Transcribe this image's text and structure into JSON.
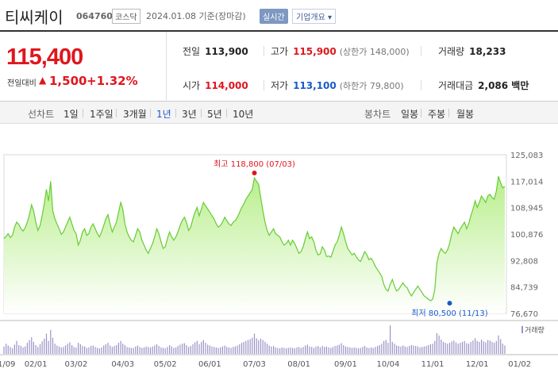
{
  "header": {
    "name": "티씨케이",
    "code": "064760",
    "market": "코스닥",
    "date": "2024.01.08",
    "basis": "기준(장마감)",
    "realtime_label": "실시간",
    "company_overview_label": "기업개요 ▾"
  },
  "quote": {
    "price": "115,400",
    "change_label": "전일대비",
    "change_arrow": "▲",
    "change_value": "1,500",
    "change_percent": "+1.32%",
    "prev_close_label": "전일",
    "prev_close": "113,900",
    "high_label": "고가",
    "high": "115,900",
    "upper_limit": "(상한가 148,000)",
    "volume_label": "거래량",
    "volume": "18,233",
    "open_label": "시가",
    "open": "114,000",
    "low_label": "저가",
    "low": "113,100",
    "lower_limit": "(하한가 79,800)",
    "value_label": "거래대금",
    "value": "2,086 백만"
  },
  "tabs": {
    "line_chart_label": "선차트",
    "periods": [
      "1일",
      "1주일",
      "3개월",
      "1년",
      "3년",
      "5년",
      "10년"
    ],
    "active_period": "1년",
    "candle_chart_label": "봉차트",
    "candle_periods": [
      "일봉",
      "주봉",
      "월봉"
    ]
  },
  "colors": {
    "up": "#e0161e",
    "down": "#1a5ac8",
    "line": "#66cc33",
    "fill_top": "#b9ee8c",
    "volume_bar": "#9b92c6"
  },
  "chart_data": {
    "type": "area",
    "y_ticks": [
      "125,083",
      "117,014",
      "108,945",
      "100,876",
      "92,808",
      "84,739",
      "76,670"
    ],
    "ylim": [
      76670,
      125083
    ],
    "x_ticks": [
      "01/09",
      "02/01",
      "03/02",
      "04/03",
      "05/02",
      "06/01",
      "07/03",
      "08/01",
      "09/01",
      "10/04",
      "11/01",
      "12/01",
      "01/02"
    ],
    "x_tick_index": [
      0,
      15,
      34,
      56,
      76,
      97,
      118,
      139,
      161,
      181,
      202,
      223,
      243
    ],
    "annotations": {
      "high": {
        "label": "최고",
        "value": "118,800",
        "date": "(07/03)",
        "index": 118,
        "price": 118800
      },
      "low": {
        "label": "최저",
        "value": "80,500",
        "date": "(11/13)",
        "index": 210,
        "price": 80500
      }
    },
    "volume_legend": "거래량",
    "series": [
      {
        "values": [
          99500,
          100200,
          101000,
          99800,
          100500,
          103000,
          104500,
          103800,
          102500,
          101800,
          102800,
          104500,
          106800,
          109800,
          108000,
          104500,
          102000,
          103500,
          106500,
          110200,
          114500,
          111000,
          117000,
          108000,
          105500,
          104000,
          102500,
          100800,
          101500,
          103000,
          104500,
          106000,
          104000,
          102000,
          101000,
          97500,
          99000,
          101500,
          102500,
          100500,
          101000,
          103000,
          104000,
          102500,
          101000,
          100000,
          101500,
          103500,
          105500,
          106800,
          104000,
          101500,
          103000,
          104500,
          107500,
          110500,
          108500,
          104000,
          101500,
          100000,
          99000,
          98500,
          100500,
          102500,
          101500,
          99000,
          97500,
          96000,
          95000,
          96500,
          98000,
          100000,
          102500,
          101000,
          98500,
          96500,
          97000,
          99500,
          101500,
          100000,
          99000,
          100000,
          101500,
          103500,
          105000,
          106000,
          104500,
          102000,
          103000,
          105500,
          107500,
          109000,
          106500,
          108500,
          110500,
          109500,
          108500,
          107500,
          106500,
          105500,
          104000,
          103000,
          103500,
          104500,
          106000,
          105000,
          104000,
          103500,
          104500,
          105000,
          106000,
          107500,
          109000,
          110000,
          111500,
          112500,
          113500,
          114500,
          118000,
          117000,
          116000,
          112000,
          108000,
          104500,
          102000,
          100500,
          101500,
          102500,
          101000,
          100500,
          100000,
          98500,
          97500,
          98000,
          99000,
          97500,
          99000,
          98000,
          96500,
          95000,
          95500,
          97000,
          99500,
          101500,
          99500,
          100000,
          98500,
          96000,
          94500,
          94800,
          97000,
          96000,
          94000,
          94200,
          93800,
          95500,
          97500,
          98500,
          100500,
          103000,
          101000,
          98500,
          96500,
          95500,
          94500,
          95000,
          94000,
          93000,
          92500,
          94000,
          95500,
          94500,
          93000,
          93500,
          92500,
          91000,
          90000,
          89000,
          88000,
          85500,
          84000,
          83500,
          85500,
          87000,
          85000,
          83500,
          84000,
          85000,
          86000,
          85000,
          84500,
          83000,
          82000,
          83000,
          84000,
          85000,
          84000,
          83000,
          82000,
          81500,
          81000,
          80500,
          81000,
          84000,
          92000,
          95000,
          96500,
          95500,
          95000,
          96000,
          98000,
          101000,
          103000,
          102000,
          101000,
          102500,
          103500,
          104500,
          102500,
          104000,
          106500,
          108500,
          111000,
          109000,
          110500,
          112500,
          111500,
          110500,
          112500,
          113000,
          112000,
          111500,
          114000,
          118500,
          116500,
          115000,
          115400
        ]
      },
      {
        "name": "거래량",
        "values": [
          16000,
          22000,
          18000,
          15000,
          12000,
          20000,
          28000,
          19000,
          17000,
          14000,
          16000,
          24000,
          30000,
          36000,
          26000,
          19000,
          15000,
          21000,
          27000,
          33000,
          44000,
          28000,
          52000,
          35000,
          22000,
          18000,
          16000,
          14000,
          15000,
          18000,
          22000,
          25000,
          19000,
          15000,
          14000,
          24000,
          21000,
          17000,
          16000,
          13000,
          14000,
          17000,
          18000,
          15000,
          13000,
          12000,
          14000,
          18000,
          21000,
          24000,
          18000,
          15000,
          17000,
          19000,
          24000,
          28000,
          22000,
          19000,
          15000,
          14000,
          13000,
          13000,
          16000,
          18000,
          15000,
          13000,
          14000,
          16000,
          15000,
          14000,
          16000,
          18000,
          21000,
          17000,
          14000,
          13000,
          12000,
          15000,
          19000,
          16000,
          13000,
          14000,
          17000,
          20000,
          22000,
          23000,
          19000,
          15000,
          17000,
          21000,
          25000,
          28000,
          21000,
          26000,
          30000,
          24000,
          20000,
          18000,
          16000,
          15000,
          14000,
          13000,
          14000,
          16000,
          18000,
          15000,
          14000,
          13000,
          15000,
          16000,
          18000,
          21000,
          24000,
          26000,
          28000,
          30000,
          32000,
          35000,
          44000,
          34000,
          30000,
          33000,
          30000,
          26000,
          22000,
          18000,
          16000,
          17000,
          14000,
          13000,
          12000,
          14000,
          13000,
          12000,
          13000,
          14000,
          13000,
          12000,
          14000,
          15000,
          13000,
          15000,
          18000,
          20000,
          16000,
          15000,
          13000,
          16000,
          17000,
          14000,
          17000,
          15000,
          16000,
          14000,
          13000,
          15000,
          17000,
          18000,
          20000,
          23000,
          19000,
          16000,
          15000,
          14000,
          13000,
          14000,
          13000,
          12000,
          13000,
          15000,
          17000,
          14000,
          13000,
          14000,
          13000,
          15000,
          17000,
          19000,
          22000,
          28000,
          30000,
          24000,
          62000,
          26000,
          22000,
          18000,
          17000,
          16000,
          18000,
          16000,
          15000,
          17000,
          19000,
          18000,
          17000,
          16000,
          14000,
          15000,
          16000,
          17000,
          19000,
          21000,
          22000,
          28000,
          45000,
          40000,
          31000,
          26000,
          24000,
          22000,
          24000,
          27000,
          29000,
          25000,
          22000,
          24000,
          26000,
          28000,
          23000,
          22000,
          26000,
          29000,
          34000,
          28000,
          26000,
          31000,
          27000,
          25000,
          30000,
          29000,
          26000,
          24000,
          28000,
          40000,
          32000,
          22000,
          18233
        ]
      }
    ]
  }
}
